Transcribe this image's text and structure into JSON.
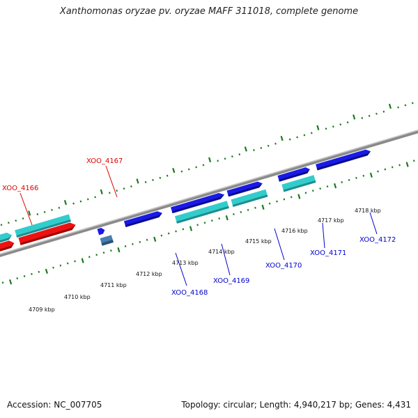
{
  "title": "Xanthomonas oryzae pv. oryzae MAFF 311018, complete genome",
  "footer": {
    "accession": "Accession: NC_007705",
    "summary": "Topology: circular; Length: 4,940,217 bp; Genes: 4,431"
  },
  "colors": {
    "backbone": "#8a8a8a",
    "tick": "#1a7a1a",
    "forward_cds": "#1a1ae6",
    "reverse_cds": "#33cccc",
    "red_feature": "#ee1111",
    "highlighted_gene": "#4a7fb0",
    "label_red": "#dd0000",
    "label_blue": "#0000cc"
  },
  "scale_labels": [
    "4709 kbp",
    "4710 kbp",
    "4711 kbp",
    "4712 kbp",
    "4713 kbp",
    "4714 kbp",
    "4715 kbp",
    "4716 kbp",
    "4717 kbp",
    "4718 kbp"
  ],
  "genes": [
    {
      "label": "XOO_4166",
      "color": "red"
    },
    {
      "label": "XOO_4167",
      "color": "red"
    },
    {
      "label": "XOO_4168",
      "color": "blue"
    },
    {
      "label": "XOO_4169",
      "color": "blue"
    },
    {
      "label": "XOO_4170",
      "color": "blue"
    },
    {
      "label": "XOO_4171",
      "color": "blue"
    },
    {
      "label": "XOO_4172",
      "color": "blue"
    }
  ]
}
